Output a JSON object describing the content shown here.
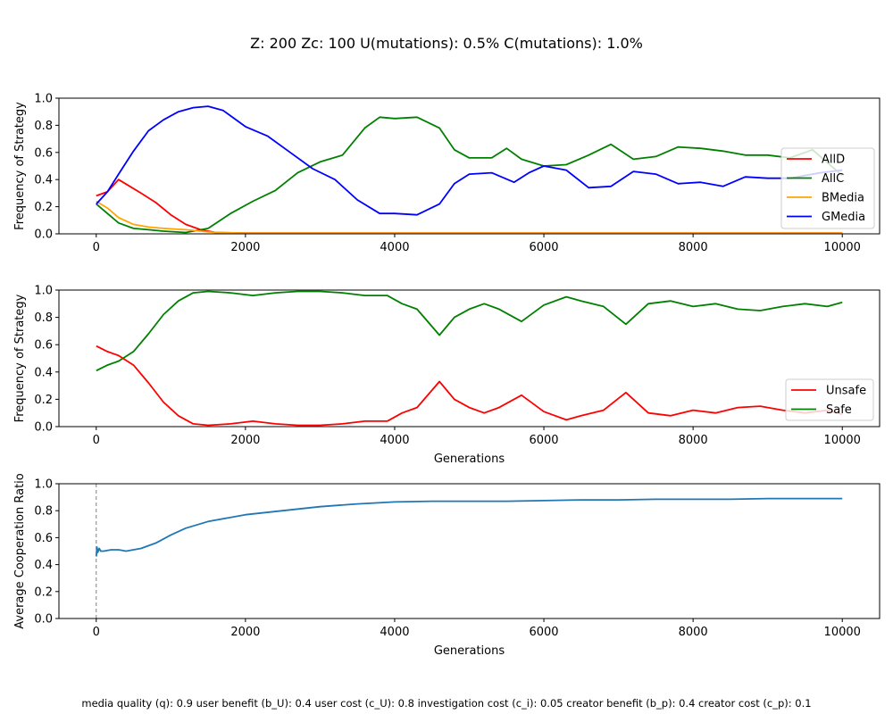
{
  "title": "Z: 200  Zc: 100  U(mutations): 0.5%  C(mutations): 1.0%",
  "footer": "media quality (q): 0.9  user benefit (b_U): 0.4  user cost (c_U): 0.8  investigation cost (c_i): 0.05  creator benefit (b_p): 0.4  creator cost (c_p): 0.1",
  "chart_data": [
    {
      "type": "line",
      "xlabel": "",
      "ylabel": "Frequency of Strategy",
      "xlim": [
        -500,
        10500
      ],
      "ylim": [
        0,
        1
      ],
      "xticks": [
        0,
        2000,
        4000,
        6000,
        8000,
        10000
      ],
      "yticks": [
        0.0,
        0.2,
        0.4,
        0.6,
        0.8,
        1.0
      ],
      "legend": "right",
      "series": [
        {
          "name": "AllD",
          "color": "#ff0000",
          "x": [
            0,
            150,
            300,
            450,
            600,
            800,
            1000,
            1200,
            1400,
            1600,
            2000,
            4000,
            6000,
            8000,
            10000
          ],
          "values": [
            0.28,
            0.31,
            0.4,
            0.35,
            0.3,
            0.23,
            0.14,
            0.07,
            0.03,
            0.01,
            0.005,
            0.005,
            0.005,
            0.005,
            0.005
          ]
        },
        {
          "name": "AllC",
          "color": "#008000",
          "x": [
            0,
            150,
            300,
            500,
            700,
            900,
            1200,
            1500,
            1800,
            2100,
            2400,
            2700,
            3000,
            3300,
            3600,
            3800,
            4000,
            4300,
            4600,
            4800,
            5000,
            5300,
            5500,
            5700,
            6000,
            6300,
            6600,
            6900,
            7200,
            7500,
            7800,
            8100,
            8400,
            8700,
            9000,
            9300,
            9600,
            10000
          ],
          "values": [
            0.22,
            0.15,
            0.08,
            0.04,
            0.03,
            0.02,
            0.01,
            0.04,
            0.15,
            0.24,
            0.32,
            0.45,
            0.53,
            0.58,
            0.78,
            0.86,
            0.85,
            0.86,
            0.78,
            0.62,
            0.56,
            0.56,
            0.63,
            0.55,
            0.5,
            0.51,
            0.58,
            0.66,
            0.55,
            0.57,
            0.64,
            0.63,
            0.61,
            0.58,
            0.58,
            0.56,
            0.62,
            0.43
          ]
        },
        {
          "name": "BMedia",
          "color": "#ffa500",
          "x": [
            0,
            150,
            300,
            500,
            700,
            900,
            1200,
            1400,
            1600,
            2000,
            4000,
            6000,
            8000,
            10000
          ],
          "values": [
            0.24,
            0.19,
            0.12,
            0.07,
            0.05,
            0.04,
            0.03,
            0.02,
            0.01,
            0.005,
            0.005,
            0.005,
            0.005,
            0.005
          ]
        },
        {
          "name": "GMedia",
          "color": "#0000ff",
          "x": [
            0,
            150,
            300,
            500,
            700,
            900,
            1100,
            1300,
            1500,
            1700,
            2000,
            2300,
            2600,
            2900,
            3200,
            3500,
            3800,
            4000,
            4300,
            4600,
            4800,
            5000,
            5300,
            5600,
            5800,
            6000,
            6300,
            6600,
            6900,
            7200,
            7500,
            7800,
            8100,
            8400,
            8700,
            9000,
            9300,
            9700,
            10000
          ],
          "values": [
            0.22,
            0.31,
            0.44,
            0.61,
            0.76,
            0.84,
            0.9,
            0.93,
            0.94,
            0.91,
            0.79,
            0.72,
            0.6,
            0.48,
            0.4,
            0.25,
            0.15,
            0.15,
            0.14,
            0.22,
            0.37,
            0.44,
            0.45,
            0.38,
            0.45,
            0.5,
            0.47,
            0.34,
            0.35,
            0.46,
            0.44,
            0.37,
            0.38,
            0.35,
            0.42,
            0.41,
            0.41,
            0.45,
            0.47
          ]
        }
      ]
    },
    {
      "type": "line",
      "xlabel": "Generations",
      "ylabel": "Frequency of Strategy",
      "xlim": [
        -500,
        10500
      ],
      "ylim": [
        0,
        1
      ],
      "xticks": [
        0,
        2000,
        4000,
        6000,
        8000,
        10000
      ],
      "yticks": [
        0.0,
        0.2,
        0.4,
        0.6,
        0.8,
        1.0
      ],
      "legend": "lower right",
      "series": [
        {
          "name": "Unsafe",
          "color": "#ff0000",
          "x": [
            0,
            150,
            300,
            500,
            700,
            900,
            1100,
            1300,
            1500,
            1800,
            2100,
            2400,
            2700,
            3000,
            3300,
            3600,
            3900,
            4100,
            4300,
            4600,
            4800,
            5000,
            5200,
            5400,
            5700,
            6000,
            6300,
            6500,
            6800,
            7100,
            7400,
            7700,
            8000,
            8300,
            8600,
            8900,
            9200,
            9500,
            9800,
            10000
          ],
          "values": [
            0.59,
            0.55,
            0.52,
            0.45,
            0.32,
            0.18,
            0.08,
            0.02,
            0.01,
            0.02,
            0.04,
            0.02,
            0.01,
            0.01,
            0.02,
            0.04,
            0.04,
            0.1,
            0.14,
            0.33,
            0.2,
            0.14,
            0.1,
            0.14,
            0.23,
            0.11,
            0.05,
            0.08,
            0.12,
            0.25,
            0.1,
            0.08,
            0.12,
            0.1,
            0.14,
            0.15,
            0.12,
            0.1,
            0.12,
            0.09
          ]
        },
        {
          "name": "Safe",
          "color": "#008000",
          "x": [
            0,
            150,
            300,
            500,
            700,
            900,
            1100,
            1300,
            1500,
            1800,
            2100,
            2400,
            2700,
            3000,
            3300,
            3600,
            3900,
            4100,
            4300,
            4600,
            4800,
            5000,
            5200,
            5400,
            5700,
            6000,
            6300,
            6500,
            6800,
            7100,
            7400,
            7700,
            8000,
            8300,
            8600,
            8900,
            9200,
            9500,
            9800,
            10000
          ],
          "values": [
            0.41,
            0.45,
            0.48,
            0.55,
            0.68,
            0.82,
            0.92,
            0.98,
            0.99,
            0.98,
            0.96,
            0.98,
            0.99,
            0.99,
            0.98,
            0.96,
            0.96,
            0.9,
            0.86,
            0.67,
            0.8,
            0.86,
            0.9,
            0.86,
            0.77,
            0.89,
            0.95,
            0.92,
            0.88,
            0.75,
            0.9,
            0.92,
            0.88,
            0.9,
            0.86,
            0.85,
            0.88,
            0.9,
            0.88,
            0.91
          ]
        }
      ]
    },
    {
      "type": "line",
      "xlabel": "Generations",
      "ylabel": "Average Cooperation Ratio",
      "xlim": [
        -500,
        10500
      ],
      "ylim": [
        0,
        1
      ],
      "xticks": [
        0,
        2000,
        4000,
        6000,
        8000,
        10000
      ],
      "yticks": [
        0.0,
        0.2,
        0.4,
        0.6,
        0.8,
        1.0
      ],
      "vline": {
        "x": 0,
        "style": "dashed",
        "color": "#808080"
      },
      "series": [
        {
          "color": "#1f77b4",
          "x": [
            0,
            10,
            20,
            40,
            60,
            100,
            200,
            300,
            400,
            500,
            600,
            800,
            1000,
            1200,
            1500,
            2000,
            2500,
            3000,
            3500,
            4000,
            4500,
            5000,
            5500,
            6000,
            6500,
            7000,
            7500,
            8000,
            8500,
            9000,
            9500,
            10000
          ],
          "values": [
            0.46,
            0.53,
            0.49,
            0.52,
            0.5,
            0.5,
            0.51,
            0.51,
            0.5,
            0.51,
            0.52,
            0.56,
            0.62,
            0.67,
            0.72,
            0.77,
            0.8,
            0.83,
            0.85,
            0.865,
            0.87,
            0.87,
            0.87,
            0.875,
            0.88,
            0.88,
            0.885,
            0.885,
            0.885,
            0.89,
            0.89,
            0.89
          ]
        }
      ]
    }
  ]
}
